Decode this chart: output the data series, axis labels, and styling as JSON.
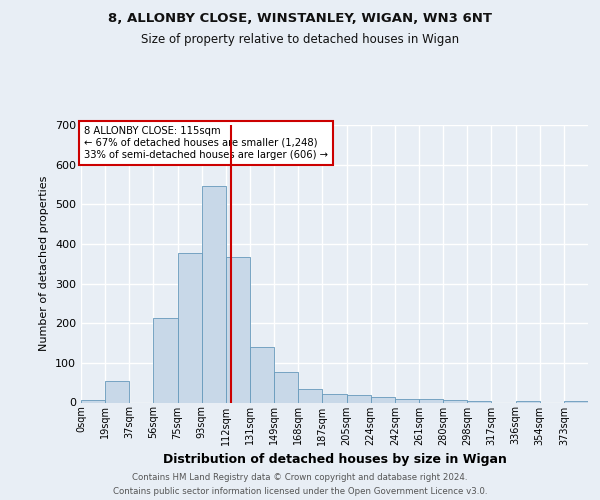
{
  "title1": "8, ALLONBY CLOSE, WINSTANLEY, WIGAN, WN3 6NT",
  "title2": "Size of property relative to detached houses in Wigan",
  "xlabel": "Distribution of detached houses by size in Wigan",
  "ylabel": "Number of detached properties",
  "bin_labels": [
    "0sqm",
    "19sqm",
    "37sqm",
    "56sqm",
    "75sqm",
    "93sqm",
    "112sqm",
    "131sqm",
    "149sqm",
    "168sqm",
    "187sqm",
    "205sqm",
    "224sqm",
    "242sqm",
    "261sqm",
    "280sqm",
    "298sqm",
    "317sqm",
    "336sqm",
    "354sqm",
    "373sqm"
  ],
  "bar_heights": [
    7,
    53,
    0,
    212,
    377,
    546,
    368,
    140,
    78,
    33,
    21,
    18,
    13,
    10,
    8,
    6,
    5,
    0,
    5,
    0,
    5
  ],
  "bar_color": "#c8d8e8",
  "bar_edge_color": "#6699bb",
  "vline_x": 115,
  "vline_color": "#cc0000",
  "ylim": [
    0,
    700
  ],
  "yticks": [
    0,
    100,
    200,
    300,
    400,
    500,
    600,
    700
  ],
  "annotation_text": "8 ALLONBY CLOSE: 115sqm\n← 67% of detached houses are smaller (1,248)\n33% of semi-detached houses are larger (606) →",
  "annotation_box_color": "#ffffff",
  "annotation_box_edge": "#cc0000",
  "footer1": "Contains HM Land Registry data © Crown copyright and database right 2024.",
  "footer2": "Contains public sector information licensed under the Open Government Licence v3.0.",
  "bg_color": "#e8eef5",
  "plot_bg_color": "#e8eef5",
  "grid_color": "#ffffff",
  "bin_width": 18.5,
  "bin_starts": [
    0,
    18.5,
    37,
    55.5,
    74,
    92.5,
    111,
    129.5,
    148,
    166.5,
    185,
    203.5,
    222,
    240.5,
    259,
    277.5,
    296,
    314.5,
    333,
    351.5,
    370
  ]
}
